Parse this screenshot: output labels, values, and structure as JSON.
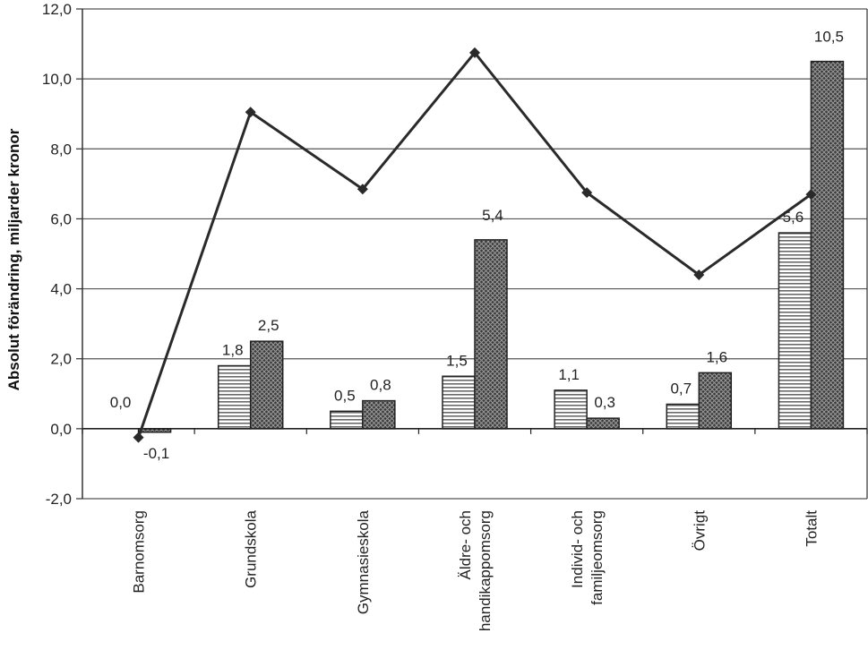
{
  "chart_data": {
    "type": "bar",
    "ylabel": "Absolut förändring, miljarder kronor",
    "ylim": [
      -2.0,
      12.0
    ],
    "yticks": [
      "-2,0",
      "0,0",
      "2,0",
      "4,0",
      "6,0",
      "8,0",
      "10,0",
      "12,0"
    ],
    "grid": true,
    "categories": [
      [
        "Barnomsorg"
      ],
      [
        "Grundskola"
      ],
      [
        "Gymnasieskola"
      ],
      [
        "Äldre- och",
        "handikappomsorg"
      ],
      [
        "Individ- och",
        "familjeomsorg"
      ],
      [
        "Övrigt"
      ],
      [
        "Totalt"
      ]
    ],
    "series": [
      {
        "kind": "bar",
        "pattern": "horizontal-stripes",
        "values": [
          0.0,
          1.8,
          0.5,
          1.5,
          1.1,
          0.7,
          5.6
        ],
        "labels": [
          "0,0",
          "1,8",
          "0,5",
          "1,5",
          "1,1",
          "0,7",
          "5,6"
        ]
      },
      {
        "kind": "bar",
        "pattern": "crosshatch-dark",
        "values": [
          -0.1,
          2.5,
          0.8,
          5.4,
          0.3,
          1.6,
          10.5
        ],
        "labels": [
          "-0,1",
          "2,5",
          "0,8",
          "5,4",
          "0,3",
          "1,6",
          "10,5"
        ]
      },
      {
        "kind": "line",
        "marker": "diamond",
        "values": [
          -0.25,
          9.05,
          6.85,
          10.75,
          6.75,
          4.4,
          6.7
        ]
      }
    ],
    "colors": {
      "line": "#2a2a2a",
      "bar_dark": "#3a3a3a",
      "axis": "#333333"
    }
  }
}
